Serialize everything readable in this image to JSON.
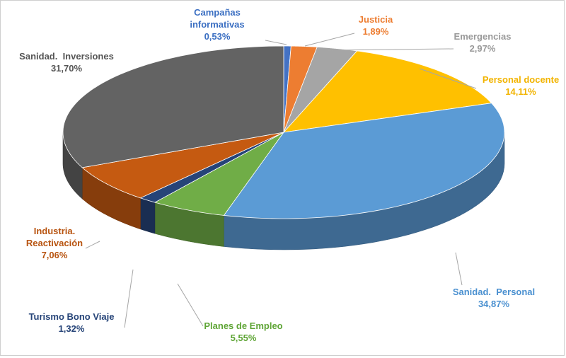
{
  "chart_data": {
    "type": "pie",
    "style": "3d-exploded-pie",
    "slices": [
      {
        "label_lines": [
          "Campañas",
          "informativas"
        ],
        "value_text": "0,53%",
        "value": 0.53,
        "color": "#4472c4",
        "text_color": "#3b6fc2"
      },
      {
        "label_lines": [
          "Justicia"
        ],
        "value_text": "1,89%",
        "value": 1.89,
        "color": "#ed7d31",
        "text_color": "#ed7d31"
      },
      {
        "label_lines": [
          "Emergencias"
        ],
        "value_text": "2,97%",
        "value": 2.97,
        "color": "#a5a5a5",
        "text_color": "#9a9a9a"
      },
      {
        "label_lines": [
          "Personal docente"
        ],
        "value_text": "14,11%",
        "value": 14.11,
        "color": "#ffc000",
        "text_color": "#f2b400"
      },
      {
        "label_lines": [
          "Sanidad.  Personal"
        ],
        "value_text": "34,87%",
        "value": 34.87,
        "color": "#5b9bd5",
        "text_color": "#4a90d0"
      },
      {
        "label_lines": [
          "Planes de Empleo"
        ],
        "value_text": "5,55%",
        "value": 5.55,
        "color": "#70ad47",
        "text_color": "#5fa536"
      },
      {
        "label_lines": [
          "Turismo Bono Viaje"
        ],
        "value_text": "1,32%",
        "value": 1.32,
        "color": "#264478",
        "text_color": "#264478"
      },
      {
        "label_lines": [
          "Industria.",
          "Reactivación"
        ],
        "value_text": "7,06%",
        "value": 7.06,
        "color": "#c55a11",
        "text_color": "#b85410"
      },
      {
        "label_lines": [
          "Sanidad.  Inversiones"
        ],
        "value_text": "31,70%",
        "value": 31.7,
        "color": "#636363",
        "text_color": "#555555"
      }
    ]
  }
}
